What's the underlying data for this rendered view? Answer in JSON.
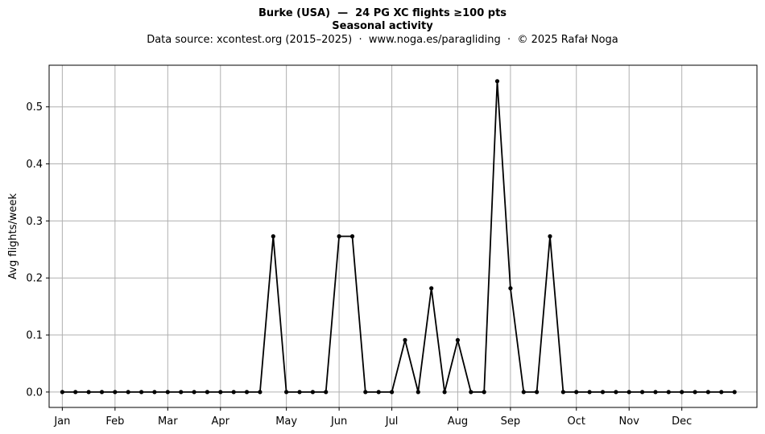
{
  "title": "Burke (USA)  —  24 PG XC flights ≥100 pts",
  "subtitle": "Seasonal activity",
  "source_line": "Data source: xcontest.org (2015–2025)  ·  www.noga.es/paragliding  ·  © 2025 Rafał Noga",
  "chart_data": {
    "type": "line",
    "title": "Burke (USA)  —  24 PG XC flights ≥100 pts",
    "subtitle": "Seasonal activity",
    "xlabel": "",
    "ylabel": "Avg flights/week",
    "x_unit": "week of year",
    "xlim": [
      0,
      53.7
    ],
    "ylim": [
      -0.027,
      0.573
    ],
    "x_ticks": [
      {
        "x": 1,
        "label": "Jan"
      },
      {
        "x": 5,
        "label": "Feb"
      },
      {
        "x": 9,
        "label": "Mar"
      },
      {
        "x": 13,
        "label": "Apr"
      },
      {
        "x": 18,
        "label": "May"
      },
      {
        "x": 22,
        "label": "Jun"
      },
      {
        "x": 26,
        "label": "Jul"
      },
      {
        "x": 31,
        "label": "Aug"
      },
      {
        "x": 35,
        "label": "Sep"
      },
      {
        "x": 40,
        "label": "Oct"
      },
      {
        "x": 44,
        "label": "Nov"
      },
      {
        "x": 48,
        "label": "Dec"
      }
    ],
    "y_ticks": [
      0.0,
      0.1,
      0.2,
      0.3,
      0.4,
      0.5
    ],
    "y_tick_labels": [
      "0.0",
      "0.1",
      "0.2",
      "0.3",
      "0.4",
      "0.5"
    ],
    "grid": true,
    "legend": false,
    "line_color": "#000000",
    "series": [
      {
        "x": [
          1,
          2,
          3,
          4,
          5,
          6,
          7,
          8,
          9,
          10,
          11,
          12,
          13,
          14,
          15,
          16,
          17,
          18,
          19,
          20,
          21,
          22,
          23,
          24,
          25,
          26,
          27,
          28,
          29,
          30,
          31,
          32,
          33,
          34,
          35,
          36,
          37,
          38,
          39,
          40,
          41,
          42,
          43,
          44,
          45,
          46,
          47,
          48,
          49,
          50,
          51,
          52
        ],
        "values": [
          0,
          0,
          0,
          0,
          0,
          0,
          0,
          0,
          0,
          0,
          0,
          0,
          0,
          0,
          0,
          0,
          0.273,
          0,
          0,
          0,
          0,
          0.273,
          0.273,
          0,
          0,
          0,
          0.091,
          0,
          0.182,
          0,
          0.091,
          0,
          0,
          0.545,
          0.182,
          0,
          0,
          0.273,
          0,
          0,
          0,
          0,
          0,
          0,
          0,
          0,
          0,
          0,
          0,
          0,
          0,
          0
        ]
      }
    ]
  }
}
